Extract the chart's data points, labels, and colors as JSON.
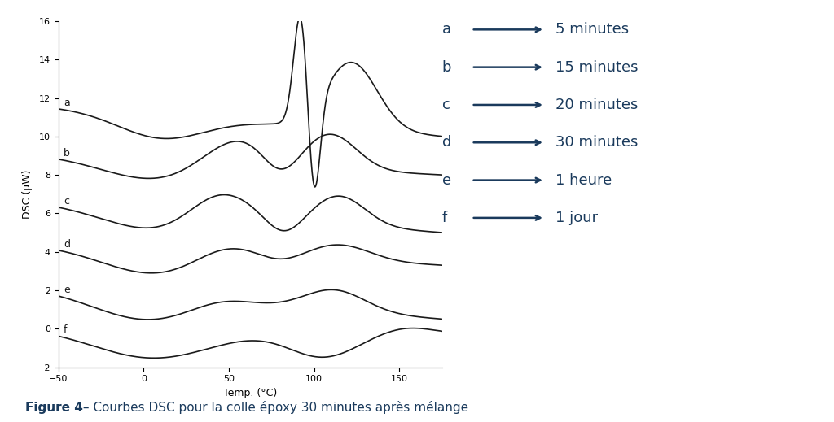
{
  "xlim": [
    -50,
    175
  ],
  "ylim": [
    -2,
    16
  ],
  "xticks": [
    -50,
    0,
    50,
    100,
    150
  ],
  "yticks": [
    -2,
    0,
    2,
    4,
    6,
    8,
    10,
    12,
    14,
    16
  ],
  "xlabel": "Temp. (°C)",
  "ylabel": "DSC (μW)",
  "curve_color": "#1a1a1a",
  "legend_color": "#1a3a5c",
  "legend_labels": [
    "a",
    "b",
    "c",
    "d",
    "e",
    "f"
  ],
  "legend_times": [
    "5 minutes",
    "15 minutes",
    "20 minutes",
    "30 minutes",
    "1 heure",
    "1 jour"
  ],
  "figure_caption_bold": "Figure 4",
  "figure_caption_rest": " – Courbes DSC pour la colle époxy 30 minutes après mélange",
  "background_color": "#ffffff",
  "curve_linewidth": 1.2
}
